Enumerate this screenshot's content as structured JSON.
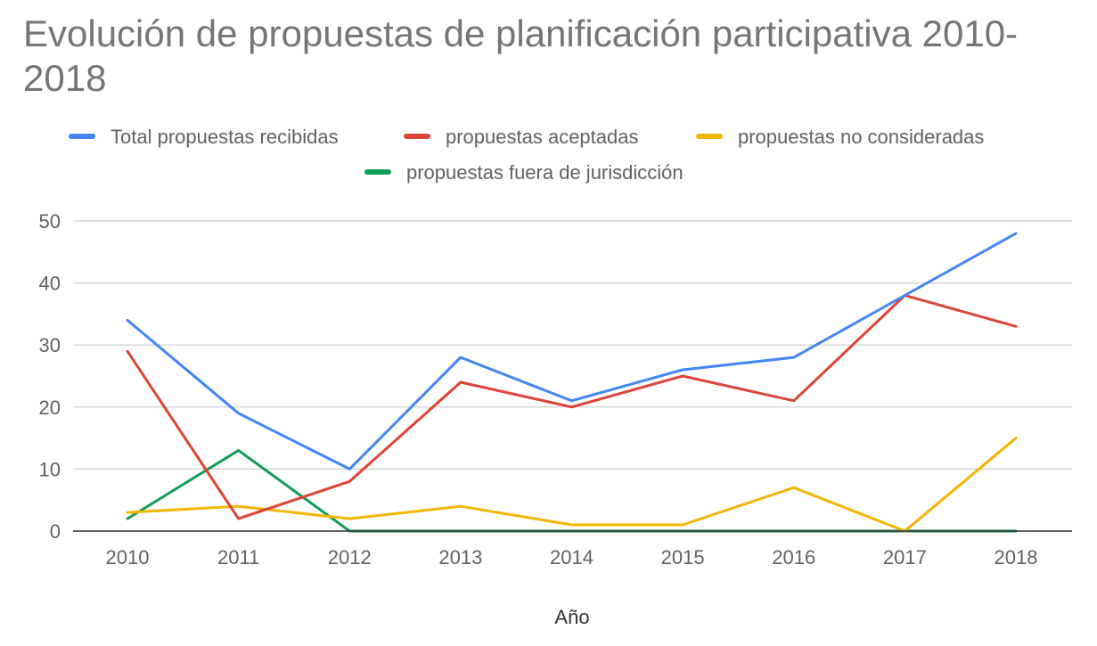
{
  "chart_data": {
    "type": "line",
    "title": "Evolución de propuestas de planificación participativa 2010-2018",
    "xlabel": "Año",
    "ylabel": "",
    "x": [
      "2010",
      "2011",
      "2012",
      "2013",
      "2014",
      "2015",
      "2016",
      "2017",
      "2018"
    ],
    "ylim": [
      0,
      50
    ],
    "yticks": [
      0,
      10,
      20,
      30,
      40,
      50
    ],
    "grid": true,
    "legend_position": "top",
    "series": [
      {
        "name": "Total propuestas recibidas",
        "color": "#4285f4",
        "values": [
          34,
          19,
          10,
          28,
          21,
          26,
          28,
          38,
          48
        ]
      },
      {
        "name": "propuestas aceptadas",
        "color": "#db4437",
        "values": [
          29,
          2,
          8,
          24,
          20,
          25,
          21,
          38,
          33
        ]
      },
      {
        "name": "propuestas no consideradas",
        "color": "#f4b400",
        "values": [
          3,
          4,
          2,
          4,
          1,
          1,
          7,
          0,
          15
        ]
      },
      {
        "name": "propuestas fuera de jurisdicción",
        "color": "#0f9d58",
        "values": [
          2,
          13,
          0,
          0,
          0,
          0,
          0,
          0,
          0
        ]
      }
    ]
  }
}
